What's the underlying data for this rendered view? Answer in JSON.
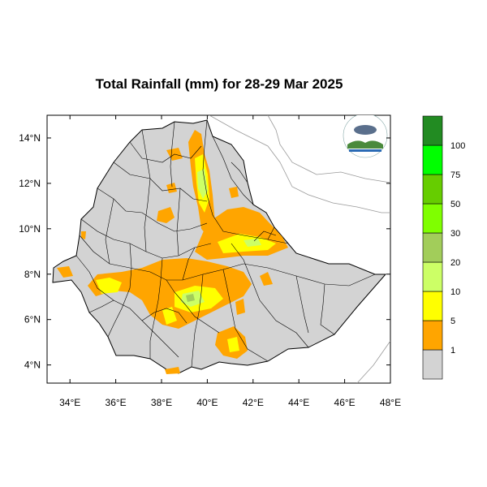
{
  "title": "Total Rainfall (mm) for 28-29 Mar 2025",
  "map": {
    "lon_range": [
      33,
      48
    ],
    "lat_range": [
      3.2,
      15
    ],
    "x_ticks": [
      "34°E",
      "36°E",
      "38°E",
      "40°E",
      "42°E",
      "44°E",
      "46°E",
      "48°E"
    ],
    "x_tick_values": [
      34,
      36,
      38,
      40,
      42,
      44,
      46,
      48
    ],
    "y_ticks": [
      "14°N",
      "12°N",
      "10°N",
      "8°N",
      "6°N",
      "4°N"
    ],
    "y_tick_values": [
      14,
      12,
      10,
      8,
      6,
      4
    ],
    "land_color": "#d3d3d3",
    "border_color": "#000000"
  },
  "legend": {
    "labels": [
      "1",
      "5",
      "10",
      "20",
      "30",
      "50",
      "75",
      "100"
    ],
    "colors": [
      "#d3d3d3",
      "#ffa500",
      "#ffff00",
      "#ccff66",
      "#a2cd5a",
      "#7fff00",
      "#66cd00",
      "#00ff00",
      "#228b22"
    ]
  },
  "logo": {
    "alt": "agency logo"
  }
}
